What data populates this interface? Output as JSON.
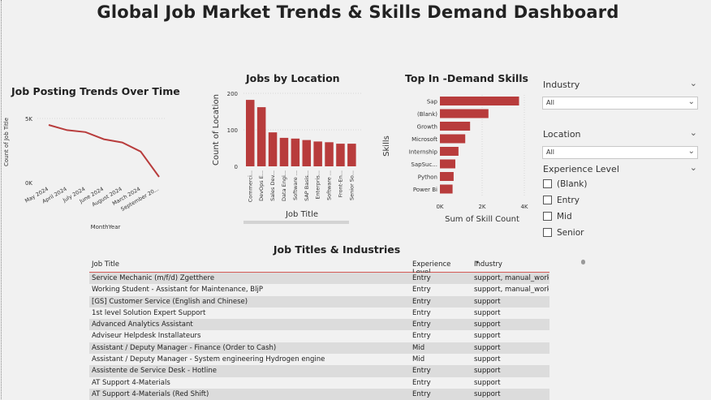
{
  "dashboard": {
    "title": "Global Job Market Trends & Skills Demand Dashboard"
  },
  "trend_chart": {
    "title": "Job Posting Trends Over Time",
    "ylabel": "Count of Job Title",
    "xlabel": "MonthYear",
    "yticks": [
      "5K",
      "0K"
    ]
  },
  "location_chart": {
    "title": "Jobs by Location",
    "ylabel": "Count of Location",
    "xlabel": "Job Title",
    "yticks": [
      "200",
      "100",
      "0"
    ]
  },
  "skills_chart": {
    "title": "Top In -Demand Skills",
    "ylabel": "Skills",
    "xlabel": "Sum of Skill Count",
    "xticks": [
      "0K",
      "2K",
      "4K"
    ]
  },
  "chart_data": [
    {
      "type": "line",
      "title": "Job Posting Trends Over Time",
      "xlabel": "MonthYear",
      "ylabel": "Count of Job Title",
      "x": [
        "May 2024",
        "April 2024",
        "July 2024",
        "June 2024",
        "August 2024",
        "March 2024",
        "September 20..."
      ],
      "y": [
        4500,
        4100,
        3950,
        3400,
        3150,
        2450,
        500
      ],
      "ylim": [
        0,
        5000
      ],
      "color": "#b83c3c"
    },
    {
      "type": "bar",
      "title": "Jobs by Location",
      "xlabel": "Job Title",
      "ylabel": "Count of Location",
      "categories": [
        "Commerci...",
        "DevOps E...",
        "Sales Dev...",
        "Data Engi...",
        "Software ...",
        "SAP Basis...",
        "Enterpris...",
        "Software ...",
        "Front-En...",
        "Senior So..."
      ],
      "values": [
        182,
        162,
        93,
        78,
        76,
        72,
        68,
        66,
        62,
        62
      ],
      "ylim": [
        0,
        200
      ],
      "color": "#b83c3c"
    },
    {
      "type": "bar",
      "orientation": "horizontal",
      "title": "Top In -Demand Skills",
      "xlabel": "Sum of Skill Count",
      "ylabel": "Skills",
      "categories": [
        "Sap",
        "(Blank)",
        "Growth",
        "Microsoft",
        "Internship",
        "SapSuc...",
        "Python",
        "Power Bi"
      ],
      "values": [
        3750,
        2300,
        1430,
        1200,
        880,
        730,
        650,
        600
      ],
      "xlim": [
        0,
        4000
      ],
      "color": "#b83c3c"
    }
  ],
  "slicers": {
    "industry": {
      "label": "Industry",
      "value": "All"
    },
    "location": {
      "label": "Location",
      "value": "All"
    },
    "experience": {
      "label": "Experience Level",
      "options": [
        "(Blank)",
        "Entry",
        "Mid",
        "Senior"
      ]
    }
  },
  "table": {
    "title": "Job Titles & Industries",
    "columns": [
      "Job Title",
      "Experience Level",
      "Industry"
    ],
    "rows": [
      [
        "Service Mechanic (m/f/d) Zgetthere",
        "Entry",
        "support, manual_work"
      ],
      [
        "Working Student - Assistant for Maintenance, BljP",
        "Entry",
        "support, manual_work"
      ],
      [
        "[GS] Customer Service (English and Chinese)",
        "Entry",
        "support"
      ],
      [
        "1st level Solution Expert Support",
        "Entry",
        "support"
      ],
      [
        "Advanced Analytics Assistant",
        "Entry",
        "support"
      ],
      [
        "Adviseur Helpdesk Installateurs",
        "Entry",
        "support"
      ],
      [
        "Assistant / Deputy Manager - Finance (Order to Cash)",
        "Mid",
        "support"
      ],
      [
        "Assistant / Deputy Manager - System engineering Hydrogen engine",
        "Mid",
        "support"
      ],
      [
        "Assistente de Service Desk - Hotline",
        "Entry",
        "support"
      ],
      [
        "AT Support 4-Materials",
        "Entry",
        "support"
      ],
      [
        "AT Support 4-Materials (Red Shift)",
        "Entry",
        "support"
      ]
    ]
  }
}
